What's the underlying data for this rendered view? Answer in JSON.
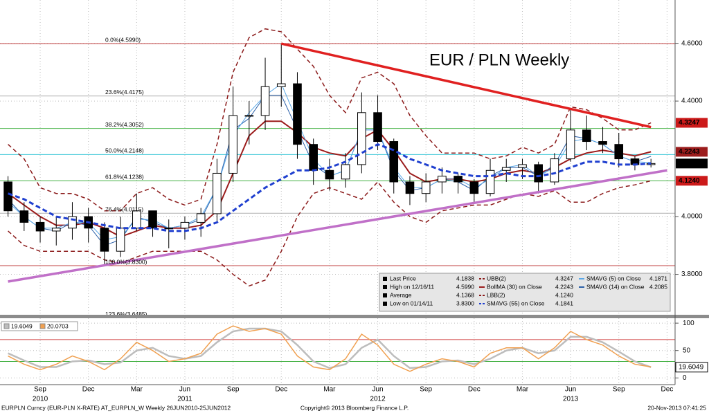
{
  "chart_data": [
    {
      "type": "candlestick",
      "title": "EUR / PLN Weekly",
      "title_color": "#e02020",
      "up_color": "#ffffff",
      "down_color": "#000000",
      "open": [
        4.12,
        4.02,
        3.98,
        3.95,
        3.96,
        4.0,
        3.96,
        3.88,
        3.96,
        4.02,
        3.96,
        3.96,
        3.98,
        4.01,
        4.15,
        4.35,
        4.35,
        4.45,
        4.46,
        4.25,
        4.16,
        4.13,
        4.18,
        4.36,
        4.26,
        4.12,
        4.08,
        4.12,
        4.14,
        4.12,
        4.08,
        4.16,
        4.17,
        4.18,
        4.12,
        4.2,
        4.3,
        4.26,
        4.25,
        4.2,
        4.18,
        null
      ],
      "high": [
        4.14,
        4.05,
        4.0,
        4.0,
        4.05,
        4.03,
        3.98,
        4.0,
        4.08,
        4.02,
        3.99,
        4.0,
        4.03,
        4.2,
        4.45,
        4.4,
        4.55,
        4.599,
        4.5,
        4.27,
        4.2,
        4.22,
        4.43,
        4.42,
        4.27,
        4.14,
        4.15,
        4.17,
        4.15,
        4.13,
        4.2,
        4.2,
        4.2,
        4.19,
        4.22,
        4.37,
        4.35,
        4.31,
        4.29,
        4.21,
        4.2,
        null
      ],
      "low": [
        4.0,
        3.95,
        3.91,
        3.9,
        3.92,
        3.91,
        3.83,
        3.86,
        3.95,
        3.93,
        3.89,
        3.92,
        3.93,
        3.98,
        4.12,
        4.25,
        4.3,
        4.38,
        4.2,
        4.11,
        4.09,
        4.1,
        4.15,
        4.23,
        4.08,
        4.04,
        4.05,
        4.08,
        4.08,
        4.05,
        4.07,
        4.12,
        4.13,
        4.08,
        4.11,
        4.19,
        4.23,
        4.22,
        4.17,
        4.16,
        4.17,
        null
      ],
      "close": [
        4.02,
        3.98,
        3.95,
        3.96,
        4.0,
        3.96,
        3.88,
        3.96,
        4.02,
        3.96,
        3.96,
        3.98,
        4.01,
        4.15,
        4.35,
        4.35,
        4.45,
        4.46,
        4.25,
        4.16,
        4.13,
        4.18,
        4.36,
        4.26,
        4.12,
        4.08,
        4.12,
        4.14,
        4.12,
        4.08,
        4.16,
        4.17,
        4.18,
        4.12,
        4.2,
        4.3,
        4.26,
        4.25,
        4.2,
        4.18,
        4.1838,
        null
      ],
      "series": [
        {
          "name": "UBB(2)",
          "color": "#8b1a1a",
          "dash": true,
          "width": 1.5,
          "last": {
            "value": 4.3247,
            "label": "4.3247"
          },
          "box_color": "#cc1a1a",
          "values": [
            4.25,
            4.2,
            4.1,
            4.08,
            4.08,
            4.06,
            4.02,
            4.02,
            4.08,
            4.1,
            4.06,
            4.04,
            4.06,
            4.25,
            4.5,
            4.62,
            4.65,
            4.64,
            4.58,
            4.52,
            4.42,
            4.36,
            4.48,
            4.5,
            4.46,
            4.35,
            4.28,
            4.22,
            4.22,
            4.22,
            4.2,
            4.21,
            4.24,
            4.22,
            4.25,
            4.38,
            4.37,
            4.34,
            4.3,
            4.3,
            4.3247,
            null
          ]
        },
        {
          "name": "BollMA (30) on Close",
          "color": "#9b1c1c",
          "dash": false,
          "width": 2,
          "last": {
            "value": 4.2243,
            "label": "4.2243"
          },
          "box_color": "#9b1c1c",
          "values": [
            4.08,
            4.04,
            4.0,
            3.97,
            3.97,
            3.98,
            3.96,
            3.93,
            3.95,
            3.97,
            3.96,
            3.96,
            3.97,
            4.02,
            4.15,
            4.28,
            4.33,
            4.33,
            4.29,
            4.24,
            4.22,
            4.21,
            4.27,
            4.3,
            4.23,
            4.15,
            4.12,
            4.13,
            4.13,
            4.12,
            4.13,
            4.15,
            4.16,
            4.15,
            4.17,
            4.2,
            4.22,
            4.23,
            4.22,
            4.21,
            4.2243,
            null
          ]
        },
        {
          "name": "LBB(2)",
          "color": "#8b1a1a",
          "dash": true,
          "width": 1.5,
          "last": {
            "value": 4.124,
            "label": "4.1240"
          },
          "box_color": "#cc1a1a",
          "values": [
            3.95,
            3.9,
            3.88,
            3.88,
            3.88,
            3.88,
            3.85,
            3.84,
            3.86,
            3.88,
            3.88,
            3.88,
            3.88,
            3.85,
            3.8,
            3.76,
            3.78,
            3.88,
            4.0,
            4.08,
            4.1,
            4.08,
            4.06,
            4.12,
            4.05,
            4.0,
            3.98,
            4.02,
            4.03,
            4.04,
            4.04,
            4.06,
            4.08,
            4.07,
            4.09,
            4.05,
            4.05,
            4.08,
            4.1,
            4.11,
            4.124,
            null
          ]
        },
        {
          "name": "SMAVG (55) on Close",
          "color": "#1f3fcf",
          "dash": true,
          "width": 3,
          "last": {
            "value": 4.1841,
            "label": "4.1841"
          },
          "values": [
            4.08,
            4.06,
            4.03,
            4.0,
            3.99,
            3.98,
            3.97,
            3.96,
            3.96,
            3.96,
            3.95,
            3.95,
            3.96,
            3.98,
            4.02,
            4.06,
            4.1,
            4.13,
            4.16,
            4.16,
            4.17,
            4.19,
            4.22,
            4.25,
            4.23,
            4.2,
            4.18,
            4.16,
            4.15,
            4.14,
            4.14,
            4.15,
            4.14,
            4.14,
            4.15,
            4.17,
            4.19,
            4.19,
            4.18,
            4.18,
            4.1841,
            null
          ]
        },
        {
          "name": "SMAVG (5) on Close",
          "color": "#5aa8e8",
          "dash": false,
          "width": 1,
          "last": {
            "value": 4.1871,
            "label": "4.1871"
          },
          "values": [
            4.05,
            4.0,
            3.96,
            3.96,
            3.98,
            3.98,
            3.92,
            3.93,
            3.99,
            3.99,
            3.96,
            3.97,
            4.0,
            4.1,
            4.28,
            4.36,
            4.42,
            4.46,
            4.33,
            4.2,
            4.14,
            4.16,
            4.3,
            4.3,
            4.17,
            4.1,
            4.1,
            4.13,
            4.13,
            4.1,
            4.13,
            4.17,
            4.18,
            4.14,
            4.17,
            4.26,
            4.27,
            4.25,
            4.21,
            4.19,
            4.1871,
            null
          ]
        },
        {
          "name": "SMAVG (14) on Close",
          "color": "#2a5fa8",
          "dash": false,
          "width": 1,
          "last": {
            "value": 4.2085,
            "label": "4.2085"
          },
          "values": [
            4.06,
            4.0,
            3.96,
            3.95,
            3.98,
            3.97,
            3.9,
            3.92,
            4.0,
            3.98,
            3.96,
            3.97,
            3.99,
            4.1,
            4.3,
            4.34,
            4.42,
            4.42,
            4.3,
            4.18,
            4.14,
            4.16,
            4.3,
            4.3,
            4.16,
            4.09,
            4.1,
            4.13,
            4.12,
            4.09,
            4.14,
            4.17,
            4.17,
            4.14,
            4.18,
            4.28,
            4.27,
            4.25,
            4.21,
            4.19,
            4.2085,
            null
          ]
        }
      ],
      "stats": [
        {
          "label": "Last Price",
          "value": {
            "value": 4.1838,
            "label": "4.1838"
          },
          "box_color": "#000000"
        },
        {
          "label": "High on 12/16/11",
          "value": {
            "value": 4.599,
            "label": "4.5990"
          }
        },
        {
          "label": "Average",
          "value": {
            "value": 4.1368,
            "label": "4.1368"
          }
        },
        {
          "label": "Low on 01/14/11",
          "value": {
            "value": 3.83,
            "label": "3.8300"
          }
        }
      ],
      "fib": [
        {
          "label": "0.0%(4.5990)",
          "value": 4.599,
          "color": "#c04040"
        },
        {
          "label": "23.6%(4.4175)",
          "value": 4.4175,
          "color": "#b0b0b0"
        },
        {
          "label": "38.2%(4.3052)",
          "value": 4.3052,
          "color": "#40b040"
        },
        {
          "label": "50.0%(4.2148)",
          "value": 4.2148,
          "color": "#40c8d8"
        },
        {
          "label": "61.8%(4.1238)",
          "value": 4.1238,
          "color": "#40b040"
        },
        {
          "label": "76.4%(4.0115)",
          "value": 4.0115,
          "color": "#b0b0b0"
        },
        {
          "label": "100.0%(3.8300)",
          "value": 3.83,
          "color": "#c04040"
        },
        {
          "label": "123.6%(3.6485)",
          "value": 3.6485,
          "color": "#b0b0b0"
        }
      ],
      "trendlines": [
        {
          "color": "#e02020",
          "points": [
            [
              17,
              4.599
            ],
            [
              40,
              4.31
            ]
          ]
        },
        {
          "color": "#c070c8",
          "points": [
            [
              0,
              3.775
            ],
            [
              41,
              4.16
            ]
          ]
        }
      ],
      "ylim": [
        3.66,
        4.75
      ],
      "yticks": [
        {
          "value": 3.8,
          "label": "3.8000"
        },
        {
          "value": 4.0,
          "label": "4.0000"
        },
        {
          "value": 4.4,
          "label": "4.4000"
        },
        {
          "value": 4.6,
          "label": "4.6000"
        }
      ],
      "grid": true
    },
    {
      "type": "line",
      "categories": [
        null,
        null,
        "Sep",
        null,
        null,
        "Dec",
        null,
        null,
        "Mar",
        null,
        null,
        "Jun",
        null,
        null,
        "Sep",
        null,
        null,
        "Dec",
        null,
        null,
        "Mar",
        null,
        null,
        "Jun",
        null,
        null,
        "Sep",
        null,
        null,
        "Dec",
        null,
        null,
        "Mar",
        null,
        null,
        "Jun",
        null,
        null,
        "Sep",
        null,
        null,
        "Dec"
      ],
      "years": [
        null,
        null,
        "2010",
        null,
        null,
        null,
        null,
        null,
        null,
        null,
        null,
        "2011",
        null,
        null,
        null,
        null,
        null,
        null,
        null,
        null,
        null,
        null,
        null,
        "2012",
        null,
        null,
        null,
        null,
        null,
        null,
        null,
        null,
        null,
        null,
        null,
        "2013",
        null,
        null,
        null,
        null,
        null,
        null
      ],
      "series": [
        {
          "name": "19.6049",
          "color": "#bdbdbd",
          "values": [
            45,
            32,
            20,
            20,
            30,
            32,
            25,
            28,
            50,
            55,
            40,
            35,
            40,
            65,
            85,
            90,
            90,
            85,
            60,
            30,
            18,
            25,
            55,
            70,
            40,
            18,
            20,
            30,
            32,
            25,
            35,
            50,
            55,
            45,
            50,
            75,
            75,
            65,
            48,
            30,
            19.6049,
            null
          ]
        },
        {
          "name": "20.0703",
          "color": "#f0a050",
          "values": [
            40,
            25,
            15,
            25,
            40,
            30,
            15,
            35,
            65,
            50,
            30,
            35,
            45,
            80,
            95,
            85,
            90,
            80,
            40,
            20,
            15,
            35,
            80,
            60,
            25,
            12,
            25,
            35,
            30,
            20,
            45,
            55,
            55,
            35,
            55,
            85,
            70,
            60,
            40,
            25,
            20.0703,
            null
          ]
        }
      ],
      "levels": [
        {
          "value": 70,
          "color": "#d04040"
        },
        {
          "value": 30,
          "color": "#40b040"
        }
      ],
      "ylim": [
        -11,
        109
      ],
      "yticks": [
        0,
        50,
        100
      ],
      "grid": true
    }
  ],
  "footer": {
    "left": "EURPLN Curncy (EUR-PLN X-RATE) AT_EURPLN_W  Weekly 26JUN2010-25JUN2012",
    "center": "Copyright© 2013 Bloomberg Finance L.P.",
    "right": "20-Nov-2013 07:41:25"
  }
}
